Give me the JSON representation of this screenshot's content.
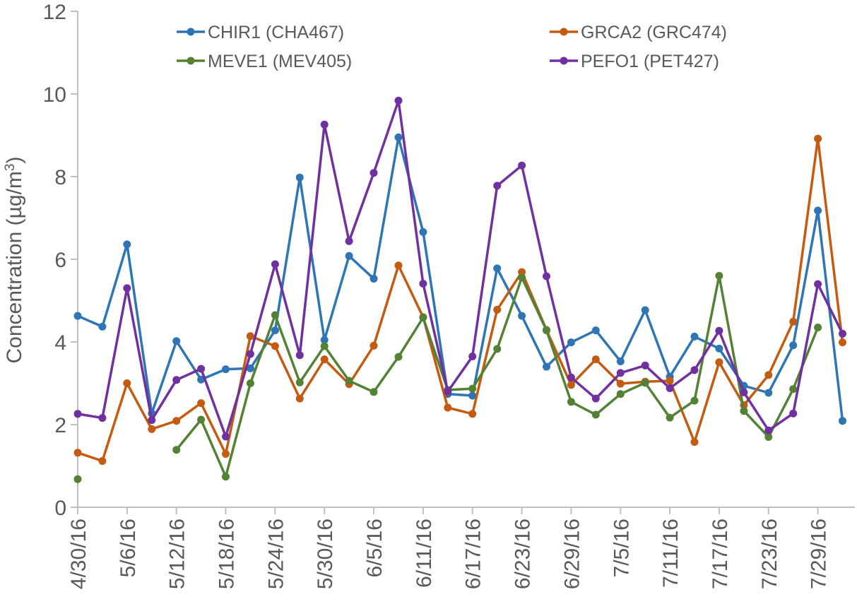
{
  "chart_data": {
    "type": "line",
    "title": "",
    "xlabel": "",
    "ylabel": "Concentration (µg/m³)",
    "ylabel_parts": {
      "main": "Concentration (µg/m",
      "sup": "3",
      "end": ")"
    },
    "ylim": [
      0,
      12
    ],
    "yticks": [
      0,
      2,
      4,
      6,
      8,
      10,
      12
    ],
    "x_tick_labels": [
      "4/30/16",
      "5/6/16",
      "5/12/16",
      "5/18/16",
      "5/24/16",
      "5/30/16",
      "6/5/16",
      "6/11/16",
      "6/17/16",
      "6/23/16",
      "6/29/16",
      "7/5/16",
      "7/11/16",
      "7/17/16",
      "7/23/16",
      "7/29/16"
    ],
    "x_count": 32,
    "series": [
      {
        "name": "CHIR1 (CHA467)",
        "color": "#2e75b6",
        "values": [
          4.63,
          4.37,
          6.36,
          2.27,
          4.02,
          3.09,
          3.34,
          3.36,
          4.28,
          7.98,
          4.05,
          6.08,
          5.53,
          8.95,
          6.66,
          2.74,
          2.7,
          5.78,
          4.63,
          3.4,
          3.99,
          4.28,
          3.53,
          4.77,
          3.16,
          4.13,
          3.84,
          2.94,
          2.77,
          3.92,
          7.18,
          2.09
        ]
      },
      {
        "name": "GRCA2 (GRC474)",
        "color": "#c55a11",
        "values": [
          1.32,
          1.12,
          3.0,
          1.89,
          2.09,
          2.52,
          1.29,
          4.14,
          3.9,
          2.63,
          3.58,
          2.98,
          3.91,
          5.85,
          4.6,
          2.41,
          2.26,
          4.78,
          5.69,
          4.29,
          2.96,
          3.58,
          2.99,
          3.04,
          3.06,
          1.58,
          3.51,
          2.47,
          3.2,
          4.49,
          8.92,
          3.99
        ]
      },
      {
        "name": "MEVE1 (MEV405)",
        "color": "#548235",
        "values": [
          0.68,
          null,
          null,
          null,
          1.39,
          2.12,
          0.74,
          3.0,
          4.65,
          3.02,
          3.9,
          3.06,
          2.79,
          3.64,
          4.59,
          2.84,
          2.87,
          3.83,
          5.56,
          4.28,
          2.55,
          2.24,
          2.74,
          3.01,
          2.17,
          2.58,
          5.6,
          2.33,
          1.7,
          2.86,
          4.35,
          null
        ]
      },
      {
        "name": "PEFO1 (PET427)",
        "color": "#7030a0",
        "values": [
          2.26,
          2.16,
          5.3,
          2.11,
          3.08,
          3.35,
          1.71,
          3.71,
          5.88,
          3.68,
          9.26,
          6.44,
          8.09,
          9.84,
          5.41,
          2.8,
          3.65,
          7.78,
          8.27,
          5.59,
          3.14,
          2.63,
          3.25,
          3.43,
          2.88,
          3.32,
          4.27,
          2.78,
          1.86,
          2.27,
          5.4,
          4.2
        ]
      }
    ],
    "legend": {
      "placement": "top",
      "columns": 2
    }
  }
}
